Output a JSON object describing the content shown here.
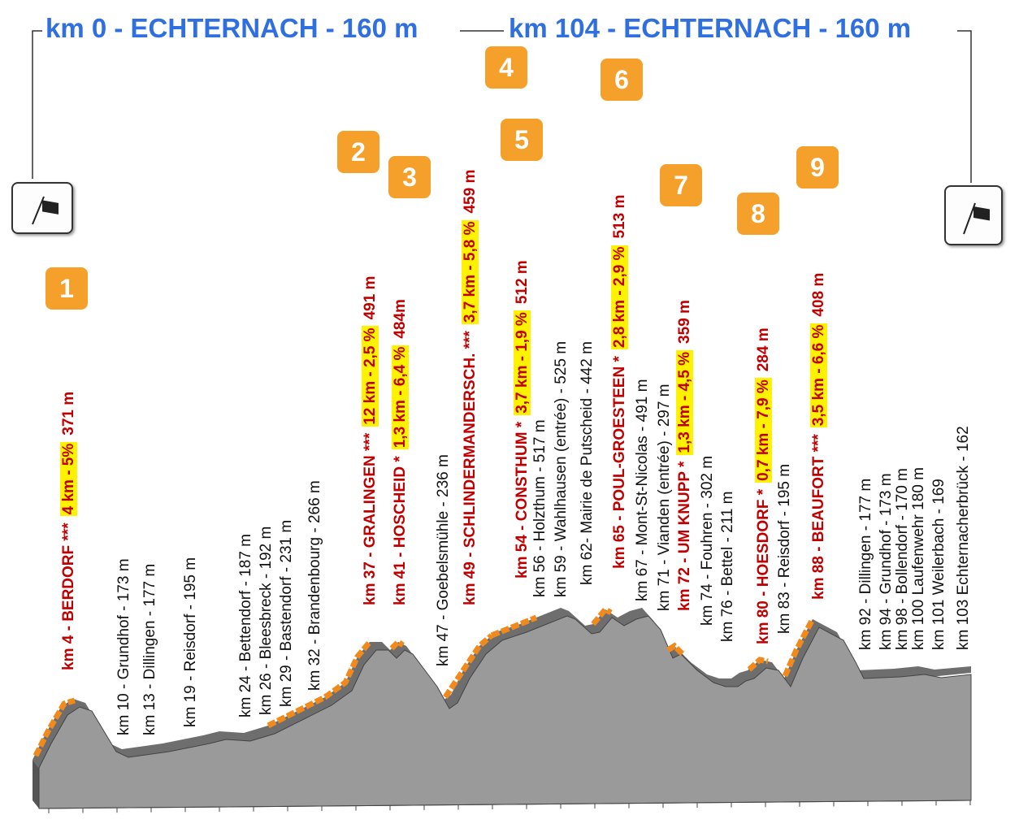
{
  "header": {
    "start": "km 0 - ECHTERNACH - 160 m",
    "finish": "km 104 - ECHTERNACH - 160 m"
  },
  "climbs": [
    {
      "number": "1",
      "name": "km 4 - BERDORF ***",
      "detail": "4 km - 5%",
      "altitude": "371 m"
    },
    {
      "number": "2",
      "name": "km 37 - GRALINGEN ***",
      "detail": "12 km - 2,5 %",
      "altitude": "491 m"
    },
    {
      "number": "3",
      "name": "km 41 - HOSCHEID *",
      "detail": "1,3 km - 6,4 %",
      "altitude": "484m"
    },
    {
      "number": "4",
      "name": "km 49 - SCHLINDERMANDERSCH. ***",
      "detail": "3,7 km - 5,8 %",
      "altitude": "459 m"
    },
    {
      "number": "5",
      "name": "km 54 - CONSTHUM *",
      "detail": "3,7 km - 1,9 %",
      "altitude": "512 m"
    },
    {
      "number": "6",
      "name": "km 65 - POUL-GROESTEEN *",
      "detail": "2,8 km - 2,9 %",
      "altitude": "513 m"
    },
    {
      "number": "7",
      "name": "km 72 - UM KNUPP *",
      "detail": "1,3 km - 4,5 %",
      "altitude": "359 m"
    },
    {
      "number": "8",
      "name": "km 80 - HOESDORF *",
      "detail": "0,7 km - 7,9 %",
      "altitude": "284 m"
    },
    {
      "number": "9",
      "name": "km 88 - BEAUFORT ***",
      "detail": "3,5 km - 6,6 %",
      "altitude": "408 m"
    }
  ],
  "points": [
    "km 10 - Grundhof - 173 m",
    "km 13 - Dillingen - 177 m",
    "km 19 - Reisdorf - 195 m",
    "km 24 - Bettendorf - 187 m",
    "km 26 - Bleesbreck - 192 m",
    "km 29 - Bastendorf - 231 m",
    "km 32 - Brandenbourg - 266 m",
    "km 47 - Goebelsmühle - 236 m",
    "km 56 - Holzthum - 517 m",
    "km 59 - Wahlhausen (entrée) - 525 m",
    "km 62- Mairie de Putscheid - 442 m",
    "km 67 - Mont-St-Nicolas - 491 m",
    "km 71 - Vianden (entrée) - 297 m",
    "km 74 - Fouhren - 302 m",
    "km 76 - Bettel - 211 m",
    "km 83 - Reisdorf - 195 m",
    "km 92 - Dillingen - 177 m",
    "km 94 - Grundhof - 173 m",
    "km 98 - Bollendorf - 170 m",
    "km 100 Laufenwehr 180 m",
    "km 101 Weilerbach - 169",
    "km 103 Echternacherbrück - 162"
  ]
}
